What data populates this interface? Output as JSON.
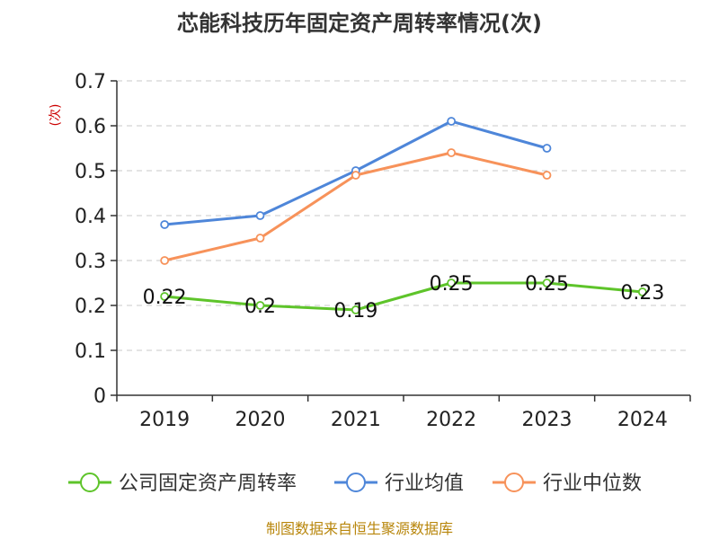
{
  "chart_data": {
    "type": "line",
    "title": "芯能科技历年固定资产周转率情况(次)",
    "ylabel": "(次)",
    "categories": [
      "2019",
      "2020",
      "2021",
      "2022",
      "2023",
      "2024"
    ],
    "ylim": [
      0,
      0.7
    ],
    "yticks": [
      "0",
      "0.1",
      "0.2",
      "0.3",
      "0.4",
      "0.5",
      "0.6",
      "0.7"
    ],
    "grid": true,
    "legend_position": "bottom",
    "series": [
      {
        "name": "公司固定资产周转率",
        "color": "#5ec42a",
        "values": [
          0.22,
          0.2,
          0.19,
          0.25,
          0.25,
          0.23
        ],
        "labels": [
          "0.22",
          "0.2",
          "0.19",
          "0.25",
          "0.25",
          "0.23"
        ]
      },
      {
        "name": "行业均值",
        "color": "#4e86d9",
        "values": [
          0.38,
          0.4,
          0.5,
          0.61,
          0.55,
          null
        ]
      },
      {
        "name": "行业中位数",
        "color": "#f7925a",
        "values": [
          0.3,
          0.35,
          0.49,
          0.54,
          0.49,
          null
        ]
      }
    ],
    "source": "制图数据来自恒生聚源数据库"
  }
}
